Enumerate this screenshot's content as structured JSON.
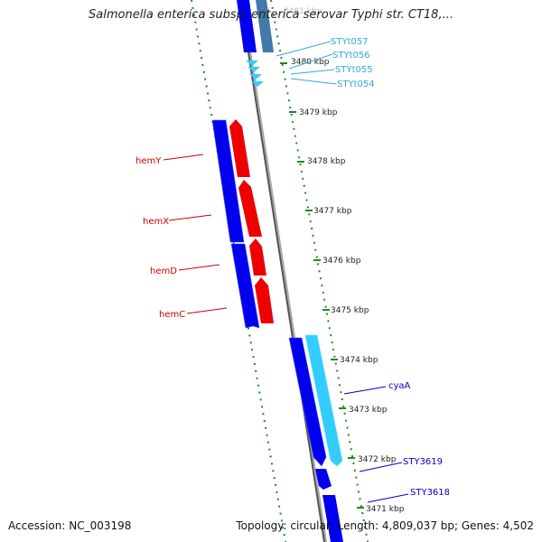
{
  "title": "Salmonella enterica subsp. enterica serovar Typhi str. CT18,...",
  "accession": "Accession: NC_003198",
  "topology": "Topology: circular; Length: 4,809,037 bp; Genes: 4,502",
  "colors": {
    "forward_gene": "#0000ee",
    "reverse_gene": "#ee0000",
    "trna": "#33ccff",
    "gene_link_blue": "#0000cc",
    "trna_label": "#33aadd",
    "gene_label_red": "#cc0000",
    "backbone": "#888888",
    "ruler": "#228822"
  },
  "ruler": {
    "unit": "kbp",
    "ticks": [
      "3481 kbp",
      "3480 kbp",
      "3479 kbp",
      "3478 kbp",
      "3477 kbp",
      "3476 kbp",
      "3475 kbp",
      "3474 kbp",
      "3473 kbp",
      "3472 kbp",
      "3471 kbp"
    ]
  },
  "genes": [
    {
      "name": "hemY",
      "strand": "reverse"
    },
    {
      "name": "hemX",
      "strand": "reverse"
    },
    {
      "name": "hemD",
      "strand": "reverse"
    },
    {
      "name": "hemC",
      "strand": "reverse"
    },
    {
      "name": "cyaA",
      "strand": "forward"
    },
    {
      "name": "STY3619",
      "strand": "forward"
    },
    {
      "name": "STY3618",
      "strand": "forward"
    }
  ],
  "trna_genes": [
    "STYt057",
    "STYt056",
    "STYt055",
    "STYt054"
  ]
}
